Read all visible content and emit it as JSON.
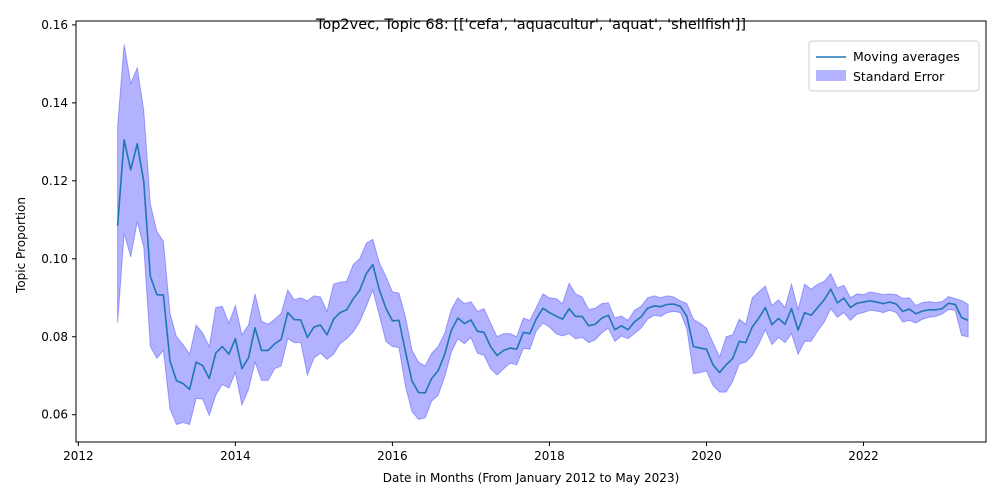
{
  "chart_data": {
    "type": "line",
    "title": "Top2vec, Topic 68: [['cefa', 'aquacultur', 'aquat', 'shellfish']]",
    "xlabel": "Date in Months (From January 2012 to May 2023)",
    "ylabel": "Topic Proportion",
    "xlim": [
      2011.97,
      2023.56
    ],
    "ylim": [
      0.053,
      0.161
    ],
    "xticks": [
      2012,
      2014,
      2016,
      2018,
      2020,
      2022
    ],
    "yticks": [
      0.06,
      0.08,
      0.1,
      0.12,
      0.14,
      0.16
    ],
    "ytick_labels": [
      "0.06",
      "0.08",
      "0.10",
      "0.12",
      "0.14",
      "0.16"
    ],
    "grid": false,
    "legend_position": "upper right",
    "colors": {
      "line": "#1f77b4",
      "band": "#0000ff",
      "band_opacity": 0.3
    },
    "series": [
      {
        "name": "Moving averages",
        "x": [
          2012.5,
          2012.583,
          2012.667,
          2012.75,
          2012.833,
          2012.917,
          2013.0,
          2013.083,
          2013.167,
          2013.25,
          2013.333,
          2013.417,
          2013.5,
          2013.583,
          2013.667,
          2013.75,
          2013.833,
          2013.917,
          2014.0,
          2014.083,
          2014.167,
          2014.25,
          2014.333,
          2014.417,
          2014.5,
          2014.583,
          2014.667,
          2014.75,
          2014.833,
          2014.917,
          2015.0,
          2015.083,
          2015.167,
          2015.25,
          2015.333,
          2015.417,
          2015.5,
          2015.583,
          2015.667,
          2015.75,
          2015.833,
          2015.917,
          2016.0,
          2016.083,
          2016.167,
          2016.25,
          2016.333,
          2016.417,
          2016.5,
          2016.583,
          2016.667,
          2016.75,
          2016.833,
          2016.917,
          2017.0,
          2017.083,
          2017.167,
          2017.25,
          2017.333,
          2017.417,
          2017.5,
          2017.583,
          2017.667,
          2017.75,
          2017.833,
          2017.917,
          2018.0,
          2018.083,
          2018.167,
          2018.25,
          2018.333,
          2018.417,
          2018.5,
          2018.583,
          2018.667,
          2018.75,
          2018.833,
          2018.917,
          2019.0,
          2019.083,
          2019.167,
          2019.25,
          2019.333,
          2019.417,
          2019.5,
          2019.583,
          2019.667,
          2019.75,
          2019.833,
          2019.917,
          2020.0,
          2020.083,
          2020.167,
          2020.25,
          2020.333,
          2020.417,
          2020.5,
          2020.583,
          2020.667,
          2020.75,
          2020.833,
          2020.917,
          2021.0,
          2021.083,
          2021.167,
          2021.25,
          2021.333,
          2021.417,
          2021.5,
          2021.583,
          2021.667,
          2021.75,
          2021.833,
          2021.917,
          2022.0,
          2022.083,
          2022.167,
          2022.25,
          2022.333,
          2022.417,
          2022.5,
          2022.583,
          2022.667,
          2022.75,
          2022.833,
          2022.917,
          2023.0,
          2023.083,
          2023.167,
          2023.25,
          2023.333
        ],
        "values": [
          0.1085,
          0.1305,
          0.1228,
          0.1295,
          0.1198,
          0.0955,
          0.0908,
          0.0907,
          0.0738,
          0.0687,
          0.068,
          0.0665,
          0.0735,
          0.0726,
          0.0693,
          0.0758,
          0.0775,
          0.0755,
          0.0795,
          0.0718,
          0.0746,
          0.0823,
          0.0765,
          0.0765,
          0.0782,
          0.0793,
          0.0862,
          0.0844,
          0.0843,
          0.0798,
          0.0825,
          0.083,
          0.0805,
          0.0845,
          0.0862,
          0.0869,
          0.0897,
          0.0919,
          0.0962,
          0.0985,
          0.0921,
          0.0873,
          0.0841,
          0.0842,
          0.0761,
          0.0686,
          0.0657,
          0.0656,
          0.0693,
          0.0713,
          0.0756,
          0.0816,
          0.0848,
          0.0834,
          0.0843,
          0.0814,
          0.0811,
          0.0775,
          0.0752,
          0.0765,
          0.0771,
          0.0768,
          0.0811,
          0.0808,
          0.0846,
          0.0873,
          0.0862,
          0.0853,
          0.0845,
          0.0872,
          0.0852,
          0.0852,
          0.0828,
          0.0832,
          0.0848,
          0.0855,
          0.0818,
          0.0828,
          0.0818,
          0.0838,
          0.0851,
          0.0873,
          0.0879,
          0.0877,
          0.0883,
          0.0884,
          0.0878,
          0.0852,
          0.0775,
          0.0771,
          0.0768,
          0.0728,
          0.0708,
          0.0728,
          0.0744,
          0.0788,
          0.0785,
          0.0825,
          0.0848,
          0.0875,
          0.0831,
          0.0847,
          0.0832,
          0.0872,
          0.0817,
          0.0862,
          0.0855,
          0.0875,
          0.0895,
          0.0922,
          0.0887,
          0.0899,
          0.0875,
          0.0886,
          0.0889,
          0.0892,
          0.0889,
          0.0885,
          0.0889,
          0.0884,
          0.0865,
          0.0871,
          0.0859,
          0.0866,
          0.0869,
          0.0869,
          0.0872,
          0.0886,
          0.0883,
          0.0849,
          0.0842
        ]
      },
      {
        "name": "Standard Error",
        "x": [
          2012.5,
          2012.583,
          2012.667,
          2012.75,
          2012.833,
          2012.917,
          2013.0,
          2013.083,
          2013.167,
          2013.25,
          2013.333,
          2013.417,
          2013.5,
          2013.583,
          2013.667,
          2013.75,
          2013.833,
          2013.917,
          2014.0,
          2014.083,
          2014.167,
          2014.25,
          2014.333,
          2014.417,
          2014.5,
          2014.583,
          2014.667,
          2014.75,
          2014.833,
          2014.917,
          2015.0,
          2015.083,
          2015.167,
          2015.25,
          2015.333,
          2015.417,
          2015.5,
          2015.583,
          2015.667,
          2015.75,
          2015.833,
          2015.917,
          2016.0,
          2016.083,
          2016.167,
          2016.25,
          2016.333,
          2016.417,
          2016.5,
          2016.583,
          2016.667,
          2016.75,
          2016.833,
          2016.917,
          2017.0,
          2017.083,
          2017.167,
          2017.25,
          2017.333,
          2017.417,
          2017.5,
          2017.583,
          2017.667,
          2017.75,
          2017.833,
          2017.917,
          2018.0,
          2018.083,
          2018.167,
          2018.25,
          2018.333,
          2018.417,
          2018.5,
          2018.583,
          2018.667,
          2018.75,
          2018.833,
          2018.917,
          2019.0,
          2019.083,
          2019.167,
          2019.25,
          2019.333,
          2019.417,
          2019.5,
          2019.583,
          2019.667,
          2019.75,
          2019.833,
          2019.917,
          2020.0,
          2020.083,
          2020.167,
          2020.25,
          2020.333,
          2020.417,
          2020.5,
          2020.583,
          2020.667,
          2020.75,
          2020.833,
          2020.917,
          2021.0,
          2021.083,
          2021.167,
          2021.25,
          2021.333,
          2021.417,
          2021.5,
          2021.583,
          2021.667,
          2021.75,
          2021.833,
          2021.917,
          2022.0,
          2022.083,
          2022.167,
          2022.25,
          2022.333,
          2022.417,
          2022.5,
          2022.583,
          2022.667,
          2022.75,
          2022.833,
          2022.917,
          2023.0,
          2023.083,
          2023.167,
          2023.25,
          2023.333
        ],
        "upper": [
          0.134,
          0.155,
          0.145,
          0.149,
          0.138,
          0.114,
          0.107,
          0.1045,
          0.086,
          0.08,
          0.078,
          0.0755,
          0.083,
          0.081,
          0.0775,
          0.0875,
          0.0878,
          0.0835,
          0.088,
          0.0805,
          0.083,
          0.091,
          0.084,
          0.0832,
          0.0845,
          0.086,
          0.092,
          0.0895,
          0.09,
          0.0892,
          0.0905,
          0.0902,
          0.0865,
          0.0935,
          0.094,
          0.0942,
          0.0985,
          0.1,
          0.104,
          0.105,
          0.099,
          0.0955,
          0.0915,
          0.0912,
          0.085,
          0.0765,
          0.0735,
          0.0725,
          0.0758,
          0.0775,
          0.081,
          0.087,
          0.09,
          0.0885,
          0.089,
          0.0865,
          0.0872,
          0.0835,
          0.08,
          0.0808,
          0.0808,
          0.08,
          0.0848,
          0.0842,
          0.0875,
          0.091,
          0.09,
          0.0898,
          0.0885,
          0.0937,
          0.091,
          0.0902,
          0.087,
          0.0873,
          0.0885,
          0.0887,
          0.0848,
          0.0853,
          0.0842,
          0.0868,
          0.0878,
          0.09,
          0.0905,
          0.09,
          0.0905,
          0.0902,
          0.0892,
          0.0885,
          0.0845,
          0.0835,
          0.0822,
          0.0785,
          0.0748,
          0.08,
          0.0805,
          0.0845,
          0.0832,
          0.09,
          0.0915,
          0.093,
          0.088,
          0.0895,
          0.0875,
          0.0935,
          0.087,
          0.0935,
          0.0922,
          0.0935,
          0.0942,
          0.0962,
          0.0925,
          0.0932,
          0.09,
          0.091,
          0.0908,
          0.0915,
          0.0912,
          0.0908,
          0.091,
          0.0908,
          0.0898,
          0.09,
          0.088,
          0.0888,
          0.089,
          0.0888,
          0.089,
          0.0903,
          0.0898,
          0.0893,
          0.0883
        ],
        "lower": [
          0.0835,
          0.1065,
          0.1005,
          0.1095,
          0.103,
          0.0775,
          0.0745,
          0.0765,
          0.0615,
          0.0575,
          0.058,
          0.0575,
          0.0642,
          0.064,
          0.0598,
          0.065,
          0.0678,
          0.0668,
          0.0708,
          0.0625,
          0.0665,
          0.0735,
          0.0688,
          0.0688,
          0.0718,
          0.0725,
          0.0795,
          0.0785,
          0.0785,
          0.0702,
          0.0745,
          0.0758,
          0.0742,
          0.0755,
          0.0782,
          0.0795,
          0.0812,
          0.0838,
          0.0878,
          0.092,
          0.0855,
          0.0788,
          0.0775,
          0.0772,
          0.0672,
          0.0608,
          0.0588,
          0.0592,
          0.0635,
          0.065,
          0.0698,
          0.076,
          0.0795,
          0.0782,
          0.0798,
          0.0758,
          0.0752,
          0.0718,
          0.0702,
          0.0718,
          0.0732,
          0.0728,
          0.077,
          0.0768,
          0.0815,
          0.0835,
          0.0825,
          0.0808,
          0.0802,
          0.0808,
          0.0795,
          0.0798,
          0.0785,
          0.0792,
          0.081,
          0.0822,
          0.0788,
          0.0802,
          0.0795,
          0.0808,
          0.0822,
          0.0845,
          0.0855,
          0.0852,
          0.0862,
          0.0865,
          0.0862,
          0.082,
          0.0705,
          0.0708,
          0.0712,
          0.0675,
          0.0658,
          0.0658,
          0.0685,
          0.073,
          0.0735,
          0.0752,
          0.0782,
          0.0818,
          0.078,
          0.0798,
          0.0785,
          0.0808,
          0.0755,
          0.0788,
          0.0788,
          0.0815,
          0.0838,
          0.0872,
          0.085,
          0.0862,
          0.0842,
          0.0858,
          0.0862,
          0.0868,
          0.0866,
          0.0862,
          0.0868,
          0.0862,
          0.0838,
          0.0842,
          0.0835,
          0.0845,
          0.085,
          0.0852,
          0.0858,
          0.087,
          0.0868,
          0.0803,
          0.08
        ]
      }
    ]
  }
}
